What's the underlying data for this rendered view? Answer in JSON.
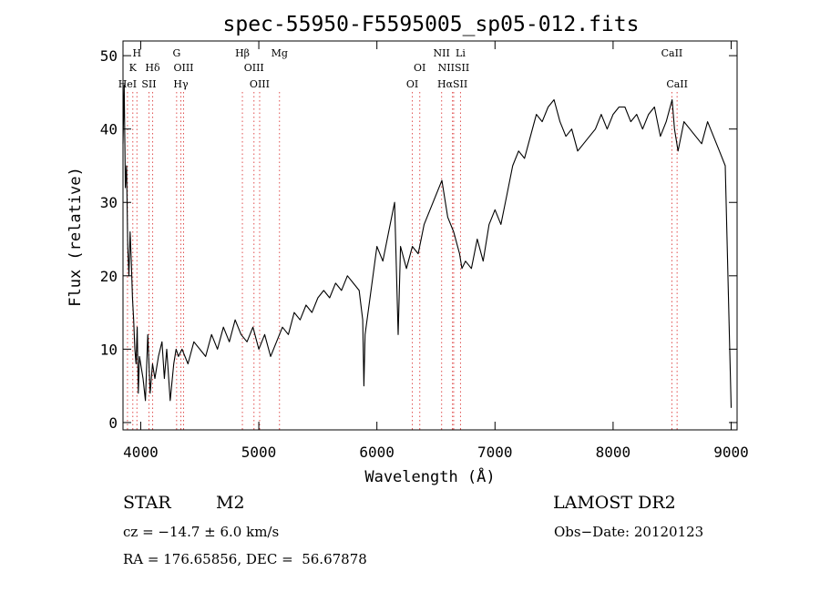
{
  "chart_data": {
    "type": "line",
    "title": "spec-55950-F5595005_sp05-012.fits",
    "xlabel": "Wavelength (Å)",
    "ylabel": "Flux (relative)",
    "xlim": [
      3850,
      9050
    ],
    "ylim": [
      -1,
      52
    ],
    "xticks": [
      4000,
      5000,
      6000,
      7000,
      8000,
      9000
    ],
    "yticks": [
      0,
      10,
      20,
      30,
      40,
      50
    ],
    "line_color": "#000000",
    "marker_color": "#e05050",
    "grid": false,
    "spectrum": {
      "x": [
        3850,
        3860,
        3870,
        3880,
        3890,
        3900,
        3910,
        3920,
        3930,
        3940,
        3950,
        3960,
        3970,
        3980,
        3990,
        4000,
        4020,
        4040,
        4060,
        4080,
        4100,
        4120,
        4150,
        4180,
        4200,
        4220,
        4250,
        4280,
        4300,
        4320,
        4350,
        4400,
        4450,
        4500,
        4550,
        4600,
        4650,
        4700,
        4750,
        4800,
        4850,
        4900,
        4950,
        5000,
        5050,
        5100,
        5150,
        5200,
        5250,
        5300,
        5350,
        5400,
        5450,
        5500,
        5550,
        5600,
        5650,
        5700,
        5750,
        5800,
        5850,
        5880,
        5890,
        5900,
        5950,
        6000,
        6050,
        6100,
        6150,
        6180,
        6200,
        6250,
        6300,
        6350,
        6400,
        6450,
        6500,
        6550,
        6600,
        6650,
        6700,
        6720,
        6750,
        6800,
        6850,
        6900,
        6950,
        7000,
        7050,
        7100,
        7150,
        7200,
        7250,
        7300,
        7350,
        7400,
        7450,
        7500,
        7550,
        7600,
        7650,
        7700,
        7750,
        7800,
        7850,
        7900,
        7950,
        8000,
        8050,
        8100,
        8150,
        8200,
        8250,
        8300,
        8350,
        8400,
        8450,
        8500,
        8520,
        8550,
        8600,
        8650,
        8700,
        8750,
        8800,
        8850,
        8900,
        8950,
        9000
      ],
      "y": [
        38,
        46,
        32,
        35,
        24,
        20,
        26,
        22,
        17,
        14,
        10,
        8,
        13,
        4,
        9,
        8,
        6,
        3,
        12,
        4,
        8,
        6,
        9,
        11,
        6,
        10,
        3,
        8,
        10,
        9,
        10,
        8,
        11,
        10,
        9,
        12,
        10,
        13,
        11,
        14,
        12,
        11,
        13,
        10,
        12,
        9,
        11,
        13,
        12,
        15,
        14,
        16,
        15,
        17,
        18,
        17,
        19,
        18,
        20,
        19,
        18,
        14,
        5,
        12,
        18,
        24,
        22,
        26,
        30,
        12,
        24,
        21,
        24,
        23,
        27,
        29,
        31,
        33,
        28,
        26,
        23,
        21,
        22,
        21,
        25,
        22,
        27,
        29,
        27,
        31,
        35,
        37,
        36,
        39,
        42,
        41,
        43,
        44,
        41,
        39,
        40,
        37,
        38,
        39,
        40,
        42,
        40,
        42,
        43,
        43,
        41,
        42,
        40,
        42,
        43,
        39,
        41,
        44,
        40,
        37,
        41,
        40,
        39,
        38,
        41,
        39,
        37,
        35,
        2
      ]
    },
    "line_markers": [
      {
        "label": "H",
        "x": 3968,
        "row": 1
      },
      {
        "label": "K",
        "x": 3933,
        "row": 2
      },
      {
        "label": "HeI",
        "x": 3888,
        "row": 3
      },
      {
        "label": "Hδ",
        "x": 4101,
        "row": 2
      },
      {
        "label": "SII",
        "x": 4070,
        "row": 3
      },
      {
        "label": "G",
        "x": 4304,
        "row": 1
      },
      {
        "label": "OIII",
        "x": 4363,
        "row": 2
      },
      {
        "label": "Hγ",
        "x": 4340,
        "row": 3
      },
      {
        "label": "Hβ",
        "x": 4861,
        "row": 1
      },
      {
        "label": "OIII",
        "x": 4959,
        "row": 2
      },
      {
        "label": "OIII",
        "x": 5007,
        "row": 3
      },
      {
        "label": "Mg",
        "x": 5175,
        "row": 1
      },
      {
        "label": "OI",
        "x": 6363,
        "row": 2
      },
      {
        "label": "OI",
        "x": 6300,
        "row": 3
      },
      {
        "label": "NII",
        "x": 6548,
        "row": 1
      },
      {
        "label": "Li",
        "x": 6708,
        "row": 1
      },
      {
        "label": "NIISII",
        "x": 6650,
        "row": 2
      },
      {
        "label": "HαSII",
        "x": 6640,
        "row": 3
      },
      {
        "label": "CaII",
        "x": 8498,
        "row": 1
      },
      {
        "label": "CaII",
        "x": 8542,
        "row": 3
      }
    ]
  },
  "info": {
    "class": "STAR",
    "subclass": "M2",
    "survey": "LAMOST DR2",
    "cz": "cz = −14.7 ± 6.0 km/s",
    "obs_date": "Obs−Date: 20120123",
    "radec": "RA = 176.65856, DEC =  56.67878"
  }
}
